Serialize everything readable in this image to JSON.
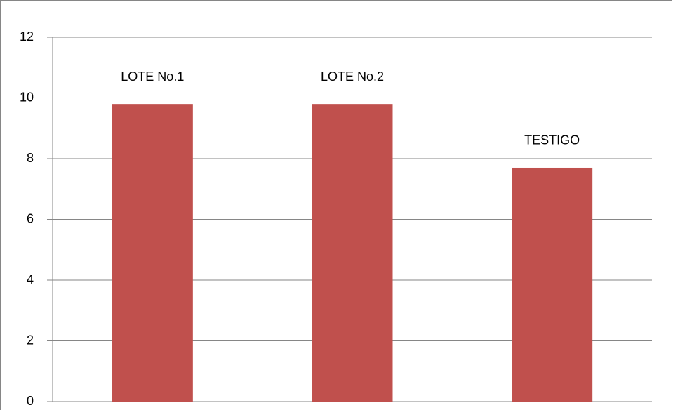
{
  "chart_data": {
    "type": "bar",
    "categories": [
      "LOTE No.1",
      "LOTE No.2",
      "TESTIGO"
    ],
    "values": [
      9.8,
      9.8,
      7.7
    ],
    "color": "#c0504d",
    "ylim": [
      0,
      12
    ],
    "yticks": [
      0,
      2,
      4,
      6,
      8,
      10,
      12
    ],
    "grid": true
  }
}
